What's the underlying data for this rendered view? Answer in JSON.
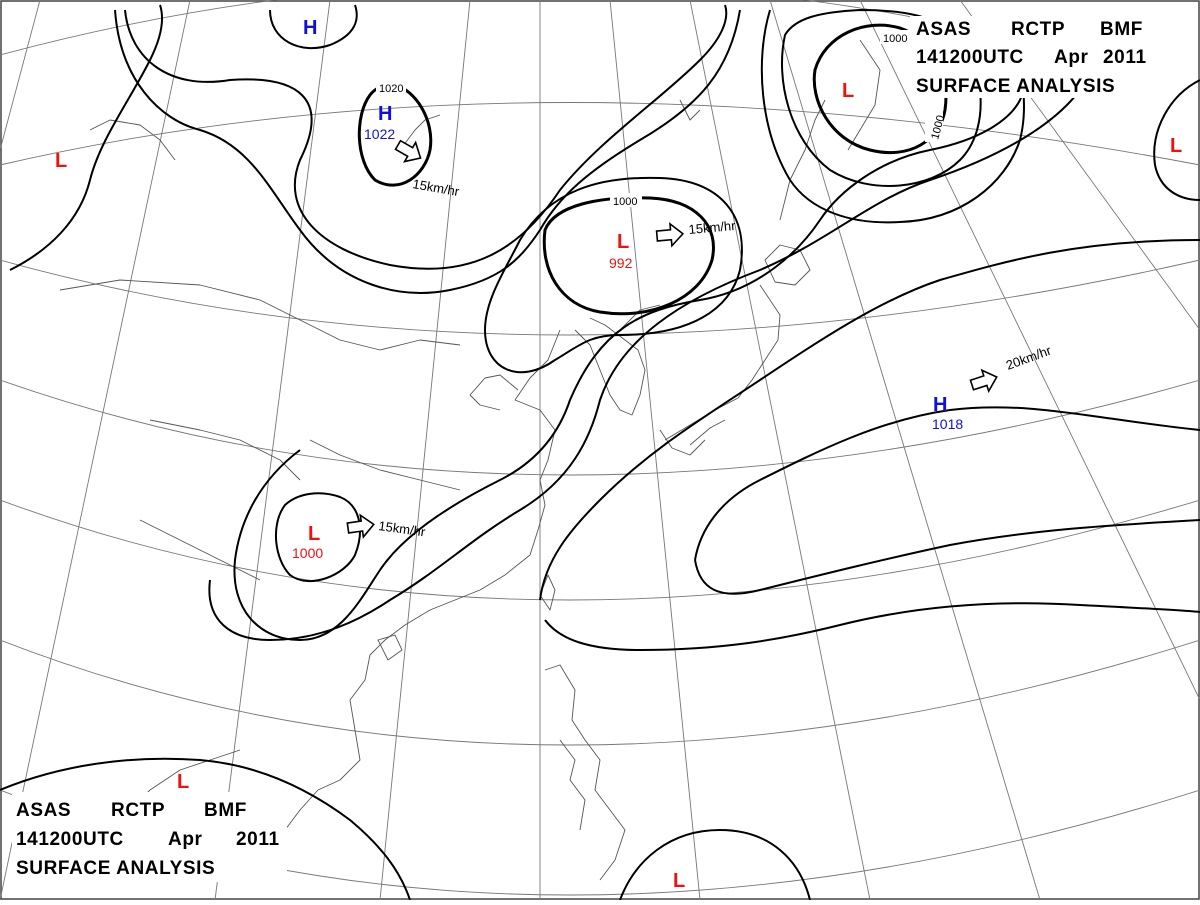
{
  "header": {
    "line1": [
      "ASAS",
      "RCTP",
      "BMF"
    ],
    "line2": [
      "141200UTC",
      "Apr",
      "2011"
    ],
    "line3": "SURFACE  ANALYSIS"
  },
  "colors": {
    "high": "#1010dd",
    "low": "#ee1111",
    "isobar": "#000000",
    "grid": "#777777",
    "coast": "#555555"
  },
  "pressure_centers": [
    {
      "id": "high-north",
      "type": "H",
      "value": ""
    },
    {
      "id": "high-siberia",
      "type": "H",
      "value": "1022"
    },
    {
      "id": "high-pacific",
      "type": "H",
      "value": "1018"
    },
    {
      "id": "low-far-west",
      "type": "L",
      "value": ""
    },
    {
      "id": "low-manchuria",
      "type": "L",
      "value": "992"
    },
    {
      "id": "low-okhotsk",
      "type": "L",
      "value": ""
    },
    {
      "id": "low-far-east",
      "type": "L",
      "value": ""
    },
    {
      "id": "low-sichuan",
      "type": "L",
      "value": "1000"
    },
    {
      "id": "low-south-west",
      "type": "L",
      "value": ""
    },
    {
      "id": "low-south",
      "type": "L",
      "value": ""
    }
  ],
  "movements": [
    {
      "id": "move-siberia-high",
      "speed": "15km/hr"
    },
    {
      "id": "move-manchuria-low",
      "speed": "15km/hr"
    },
    {
      "id": "move-sichuan-low",
      "speed": "15km/hr"
    },
    {
      "id": "move-pacific-high",
      "speed": "20km/hr"
    }
  ],
  "isobar_labels": [
    "1020",
    "1000",
    "1000",
    "1000"
  ]
}
